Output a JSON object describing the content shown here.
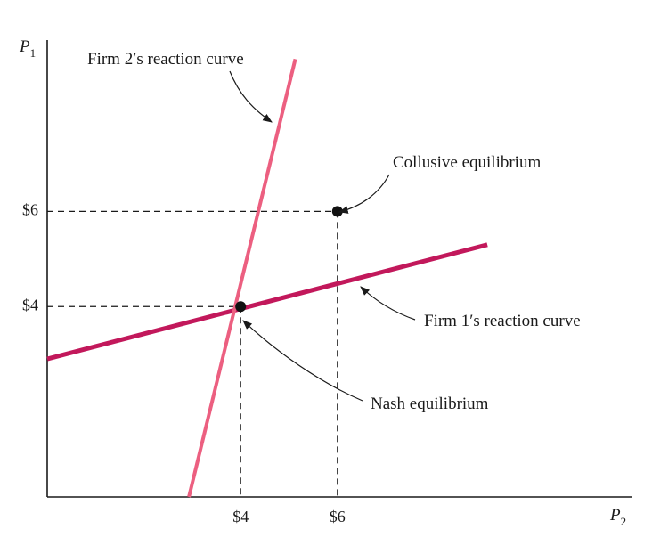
{
  "chart_data": {
    "type": "line",
    "title": "",
    "xlabel": {
      "main": "P",
      "sub": "2"
    },
    "ylabel": {
      "main": "P",
      "sub": "1"
    },
    "xlim": [
      0,
      12.1
    ],
    "ylim": [
      0,
      9.6
    ],
    "xticks": [
      {
        "value": 4,
        "label": "$4"
      },
      {
        "value": 6,
        "label": "$6"
      }
    ],
    "yticks": [
      {
        "value": 4,
        "label": "$4"
      },
      {
        "value": 6,
        "label": "$6"
      }
    ],
    "grid": false,
    "series": [
      {
        "key": "firm1",
        "name": "Firm 1′s reaction curve",
        "color": "#c2185b",
        "x": [
          0,
          9.1
        ],
        "y": [
          2.9,
          5.3
        ]
      },
      {
        "key": "firm2",
        "name": "Firm 2′s reaction curve",
        "color": "#ec5f80",
        "x": [
          2.93,
          5.13
        ],
        "y": [
          0,
          9.2
        ]
      }
    ],
    "points": [
      {
        "key": "nash",
        "name": "Nash equilibrium",
        "x": 4,
        "y": 4
      },
      {
        "key": "collusive",
        "name": "Collusive equilibrium",
        "x": 6,
        "y": 6
      }
    ]
  }
}
